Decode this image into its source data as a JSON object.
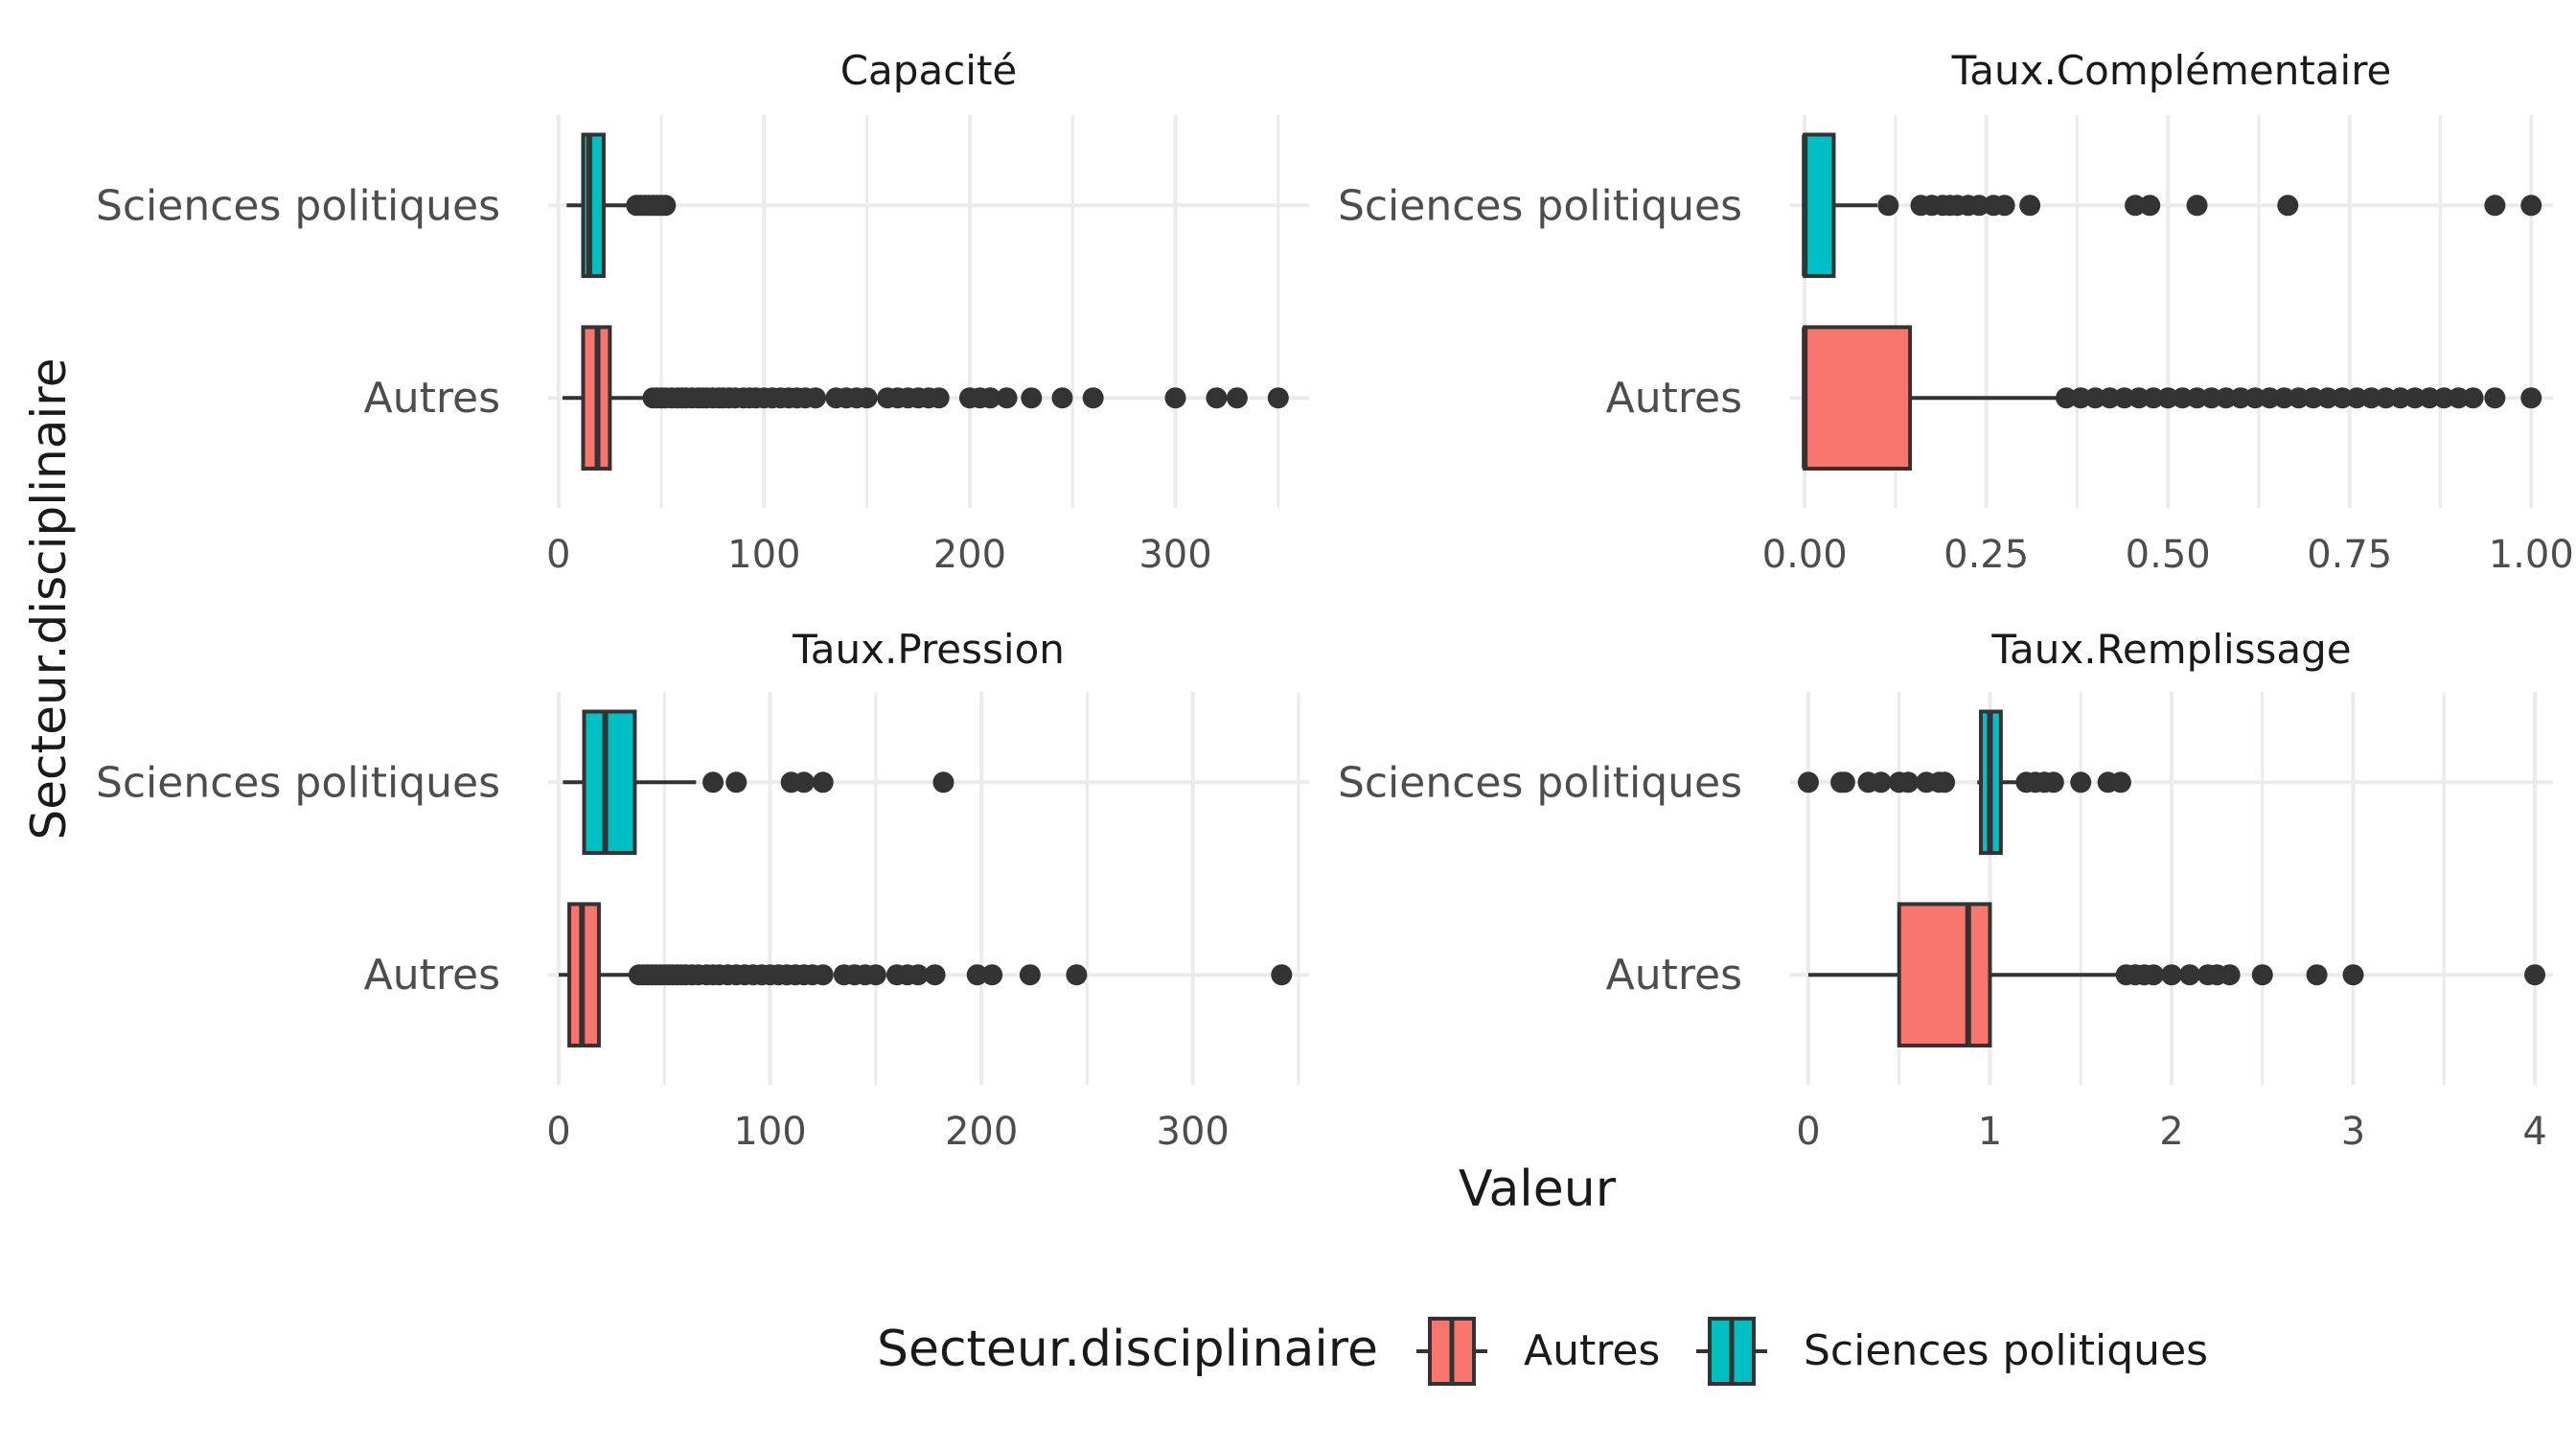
{
  "ylabel": "Secteur.disciplinaire",
  "xlabel": "Valeur",
  "legend": {
    "title": "Secteur.disciplinaire",
    "position": "bottom",
    "items": [
      {
        "label": "Autres",
        "color": "#F8766D"
      },
      {
        "label": "Sciences politiques",
        "color": "#00BFC4"
      }
    ]
  },
  "colors": {
    "autres": "#F8766D",
    "sciences": "#00BFC4",
    "grid": "#EBEBEB",
    "outline": "#333333"
  },
  "chart_data": [
    {
      "type": "boxplot",
      "title": "Capacité",
      "categories": [
        "Autres",
        "Sciences politiques"
      ],
      "xlim": [
        -5,
        365
      ],
      "xticks": [
        0,
        100,
        200,
        300
      ],
      "tick_labels": [
        "0",
        "100",
        "200",
        "300"
      ],
      "grid": true,
      "series": [
        {
          "name": "Autres",
          "min": 2,
          "q1": 12,
          "median": 19,
          "q3": 25,
          "max": 44,
          "outliers": [
            46,
            48,
            50,
            52,
            55,
            58,
            60,
            62,
            65,
            68,
            70,
            72,
            75,
            78,
            80,
            83,
            86,
            90,
            93,
            96,
            100,
            104,
            108,
            112,
            116,
            120,
            125,
            135,
            140,
            145,
            150,
            160,
            165,
            170,
            175,
            180,
            185,
            200,
            205,
            210,
            218,
            230,
            245,
            260,
            300,
            320,
            330,
            350
          ]
        },
        {
          "name": "Sciences politiques",
          "min": 4,
          "q1": 12,
          "median": 15,
          "q3": 22,
          "max": 36,
          "outliers": [
            38,
            40,
            42,
            44,
            46,
            48,
            50,
            52
          ]
        }
      ]
    },
    {
      "type": "boxplot",
      "title": "Taux.Complémentaire",
      "categories": [
        "Autres",
        "Sciences politiques"
      ],
      "xlim": [
        -0.02,
        1.03
      ],
      "xticks": [
        0,
        0.25,
        0.5,
        0.75,
        1
      ],
      "tick_labels": [
        "0.00",
        "0.25",
        "0.50",
        "0.75",
        "1.00"
      ],
      "grid": true,
      "series": [
        {
          "name": "Autres",
          "min": 0,
          "q1": 0,
          "median": 0,
          "q3": 0.145,
          "max": 0.355,
          "outliers": [
            0.36,
            0.38,
            0.4,
            0.42,
            0.44,
            0.46,
            0.48,
            0.5,
            0.52,
            0.54,
            0.56,
            0.58,
            0.6,
            0.62,
            0.64,
            0.66,
            0.68,
            0.7,
            0.72,
            0.74,
            0.76,
            0.78,
            0.8,
            0.82,
            0.84,
            0.86,
            0.88,
            0.9,
            0.92,
            0.95,
            1
          ]
        },
        {
          "name": "Sciences politiques",
          "min": 0,
          "q1": 0,
          "median": 0,
          "q3": 0.04,
          "max": 0.1,
          "outliers": [
            0.115,
            0.16,
            0.175,
            0.19,
            0.2,
            0.21,
            0.225,
            0.24,
            0.26,
            0.275,
            0.31,
            0.455,
            0.475,
            0.54,
            0.665,
            0.95,
            1
          ]
        }
      ]
    },
    {
      "type": "boxplot",
      "title": "Taux.Pression",
      "categories": [
        "Autres",
        "Sciences politiques"
      ],
      "xlim": [
        -5,
        355
      ],
      "xticks": [
        0,
        100,
        200,
        300
      ],
      "tick_labels": [
        "0",
        "100",
        "200",
        "300"
      ],
      "grid": true,
      "series": [
        {
          "name": "Autres",
          "min": 0,
          "q1": 5,
          "median": 11,
          "q3": 19,
          "max": 37,
          "outliers": [
            38,
            40,
            42,
            44,
            46,
            48,
            50,
            52,
            54,
            56,
            58,
            60,
            63,
            66,
            70,
            73,
            76,
            80,
            84,
            88,
            92,
            96,
            100,
            104,
            108,
            112,
            116,
            120,
            125,
            135,
            140,
            145,
            150,
            160,
            165,
            170,
            178,
            198,
            205,
            223,
            245,
            342
          ]
        },
        {
          "name": "Sciences politiques",
          "min": 2,
          "q1": 12,
          "median": 22,
          "q3": 36,
          "max": 65,
          "outliers": [
            73,
            84,
            110,
            116,
            125,
            182
          ]
        }
      ]
    },
    {
      "type": "boxplot",
      "title": "Taux.Remplissage",
      "categories": [
        "Autres",
        "Sciences politiques"
      ],
      "xlim": [
        -0.1,
        4.1
      ],
      "xticks": [
        0,
        1,
        2,
        3,
        4
      ],
      "tick_labels": [
        "0",
        "1",
        "2",
        "3",
        "4"
      ],
      "grid": true,
      "series": [
        {
          "name": "Autres",
          "min": 0,
          "q1": 0.5,
          "median": 0.88,
          "q3": 1,
          "max": 1.72,
          "outliers": [
            1.75,
            1.8,
            1.85,
            1.9,
            2.0,
            2.1,
            2.2,
            2.25,
            2.32,
            2.5,
            2.8,
            3.0,
            4.0
          ]
        },
        {
          "name": "Sciences politiques",
          "min": 0.93,
          "q1": 0.95,
          "median": 1.0,
          "q3": 1.06,
          "max": 1.18,
          "outliers": [
            0,
            0.18,
            0.2,
            0.33,
            0.4,
            0.5,
            0.55,
            0.65,
            0.72,
            0.75,
            1.2,
            1.25,
            1.3,
            1.35,
            1.5,
            1.65,
            1.72
          ]
        }
      ]
    }
  ]
}
